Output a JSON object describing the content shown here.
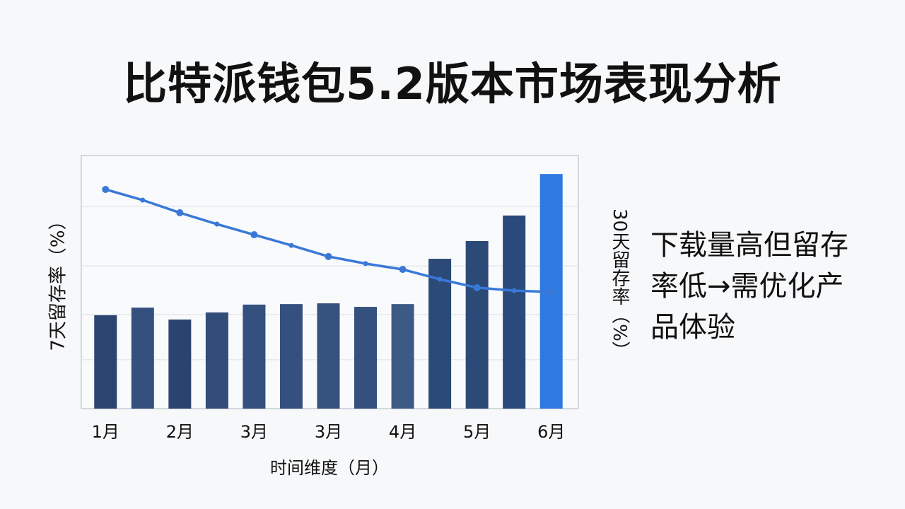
{
  "chart_data": {
    "type": "bar-line",
    "title": "比特派钱包5.2版本市场表现分析",
    "x_label": "时间维度（月）",
    "y_label": "7天留存率（%）",
    "y2_label": "30天留存率（%）",
    "annotation": "下载量高但留存率低→需优化产品体验",
    "categories": [
      "1月",
      null,
      "2月",
      null,
      "3月",
      null,
      "3月",
      null,
      "4月",
      null,
      "5月",
      null,
      "6月"
    ],
    "ylim": [
      0,
      100
    ],
    "y2lim": [
      0,
      100
    ],
    "ygrid": [
      19.3,
      37.2,
      56.4,
      79.9
    ],
    "series": [
      {
        "type": "bar",
        "colors": [
          "#2b4570",
          "#34507e",
          "#2a446f",
          "#324d7a",
          "#34507e",
          "#34507e",
          "#36527f",
          "#34507e",
          "#3d5a86",
          "#2b4a78",
          "#2b4a78",
          "#2a4a7c",
          "#2f7ae0"
        ],
        "values": [
          36.9,
          39.9,
          35.2,
          38.0,
          41.1,
          41.3,
          41.6,
          40.2,
          41.3,
          59.2,
          66.2,
          76.3,
          92.7
        ]
      },
      {
        "type": "line",
        "axis": "y2",
        "color": "#3a78d8",
        "values": [
          86.6,
          82.4,
          77.4,
          72.9,
          68.7,
          64.5,
          60.1,
          57.3,
          55.0,
          51.1,
          47.8,
          46.6,
          46.1
        ]
      }
    ]
  }
}
